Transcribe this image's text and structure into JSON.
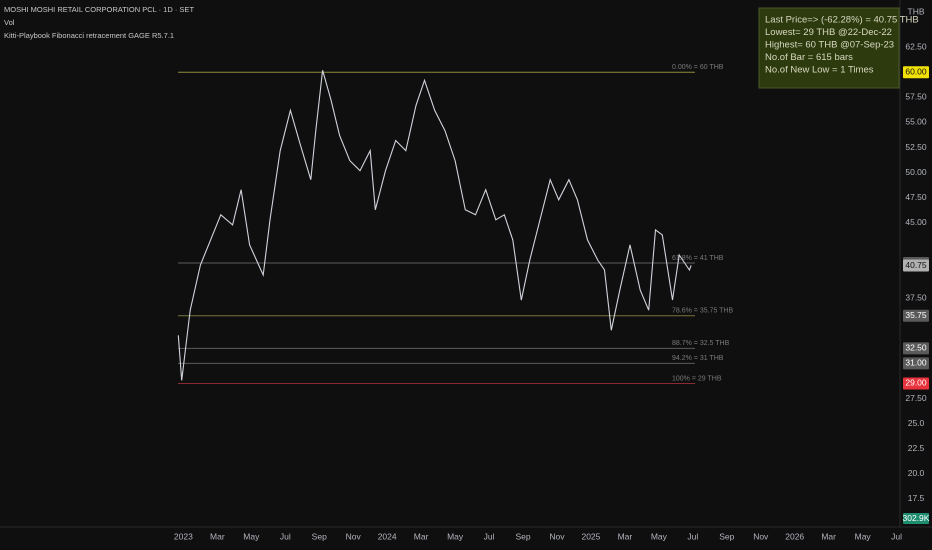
{
  "header": {
    "symbol": "MOSHI MOSHI RETAIL CORPORATION PCL · 1D · SET",
    "volume": "Vol",
    "indicator": "Kitti-Playbook Fibonacci retracement  GAGE R5.7.1",
    "currency": "THB"
  },
  "info_box": {
    "lines": [
      "Last Price=> (-62.28%) = 40.75 THB",
      "Lowest= 29 THB    @22-Dec-22",
      "Highest= 60 THB    @07-Sep-23",
      "No.of Bar = 615 bars",
      "No.of New Low    = 1  Times"
    ]
  },
  "chart_data": {
    "type": "line",
    "color": "#d1d4dc",
    "x": [
      -0.3,
      -0.1,
      0.4,
      1.0,
      1.6,
      2.2,
      2.9,
      3.4,
      3.9,
      4.7,
      5.1,
      5.7,
      6.3,
      6.9,
      7.5,
      7.8,
      8.2,
      8.7,
      9.2,
      9.8,
      10.4,
      11.0,
      11.3,
      11.9,
      12.5,
      13.1,
      13.7,
      14.2,
      14.8,
      15.4,
      16.0,
      16.6,
      17.2,
      17.8,
      18.4,
      18.9,
      19.4,
      19.9,
      20.4,
      21.0,
      21.6,
      22.1,
      22.7,
      23.2,
      23.8,
      24.4,
      24.8,
      25.2,
      25.7,
      26.3,
      26.9,
      27.4,
      27.8,
      28.2,
      28.8,
      29.2,
      29.8,
      29.9
    ],
    "values": [
      33.8,
      29.3,
      36.3,
      40.8,
      43.3,
      45.8,
      44.8,
      48.3,
      42.8,
      39.8,
      45.3,
      52.2,
      56.2,
      52.7,
      49.3,
      54.2,
      60.2,
      57.2,
      53.7,
      51.2,
      50.2,
      52.2,
      46.3,
      50.2,
      53.2,
      52.2,
      56.7,
      59.2,
      56.2,
      54.2,
      51.2,
      46.3,
      45.8,
      48.3,
      45.3,
      45.8,
      43.3,
      37.3,
      41.3,
      45.3,
      49.3,
      47.3,
      49.3,
      47.3,
      43.3,
      41.3,
      40.3,
      34.3,
      38.3,
      42.8,
      38.3,
      36.3,
      44.3,
      43.8,
      37.3,
      41.8,
      40.3,
      40.75
    ],
    "xlim": [
      -10.8,
      42.2
    ],
    "ylim": [
      14.9,
      67.2
    ],
    "xticks": [
      {
        "value": 0,
        "label": "2023"
      },
      {
        "value": 2,
        "label": "Mar"
      },
      {
        "value": 4,
        "label": "May"
      },
      {
        "value": 6,
        "label": "Jul"
      },
      {
        "value": 8,
        "label": "Sep"
      },
      {
        "value": 10,
        "label": "Nov"
      },
      {
        "value": 12,
        "label": "2024"
      },
      {
        "value": 14,
        "label": "Mar"
      },
      {
        "value": 16,
        "label": "May"
      },
      {
        "value": 18,
        "label": "Jul"
      },
      {
        "value": 20,
        "label": "Sep"
      },
      {
        "value": 22,
        "label": "Nov"
      },
      {
        "value": 24,
        "label": "2025"
      },
      {
        "value": 26,
        "label": "Mar"
      },
      {
        "value": 28,
        "label": "May"
      },
      {
        "value": 30,
        "label": "Jul"
      },
      {
        "value": 32,
        "label": "Sep"
      },
      {
        "value": 34,
        "label": "Nov"
      },
      {
        "value": 36,
        "label": "2026"
      },
      {
        "value": 38,
        "label": "Mar"
      },
      {
        "value": 40,
        "label": "May"
      },
      {
        "value": 42,
        "label": "Jul"
      }
    ],
    "yticks": [
      {
        "value": 62.5,
        "label": "62.50"
      },
      {
        "value": 57.5,
        "label": "57.50"
      },
      {
        "value": 55,
        "label": "55.00"
      },
      {
        "value": 52.5,
        "label": "52.50"
      },
      {
        "value": 50,
        "label": "50.00"
      },
      {
        "value": 47.5,
        "label": "47.50"
      },
      {
        "value": 45,
        "label": "45.00"
      },
      {
        "value": 37.5,
        "label": "37.50"
      },
      {
        "value": 27.5,
        "label": "27.50"
      },
      {
        "value": 25,
        "label": "25.0"
      },
      {
        "value": 22.5,
        "label": "22.5"
      },
      {
        "value": 20,
        "label": "20.0"
      },
      {
        "value": 17.5,
        "label": "17.5"
      }
    ],
    "levels": [
      {
        "value": 60,
        "label": "0.00% = 60 THB",
        "color": "#8c8a3c"
      },
      {
        "value": 41,
        "label": "61.8% = 41 THB",
        "color": "#5d5d5d"
      },
      {
        "value": 35.75,
        "label": "78.6% = 35.75 THB",
        "color": "#77763c"
      },
      {
        "value": 32.5,
        "label": "88.7% = 32.5 THB",
        "color": "#5d5d5d"
      },
      {
        "value": 31,
        "label": "94.2% = 31 THB",
        "color": "#5d5d5d"
      },
      {
        "value": 29,
        "label": "100% = 29 THB",
        "color": "#8a2a33"
      }
    ],
    "markers": [
      {
        "value": 60,
        "label": "60.00",
        "color": "#f2e205"
      },
      {
        "value": 41,
        "label": "41.00",
        "color": "#5a5a5a"
      },
      {
        "value": 40.75,
        "label": "40.75",
        "color": "#b0b0b0"
      },
      {
        "value": 35.75,
        "label": "35.75",
        "color": "#5a5a5a"
      },
      {
        "value": 32.5,
        "label": "32.50",
        "color": "#5a5a5a"
      },
      {
        "value": 31,
        "label": "31.00",
        "color": "#5a5a5a"
      },
      {
        "value": 29,
        "label": "29.00",
        "color": "#e8323c"
      }
    ],
    "volume_label": "302.9K"
  }
}
